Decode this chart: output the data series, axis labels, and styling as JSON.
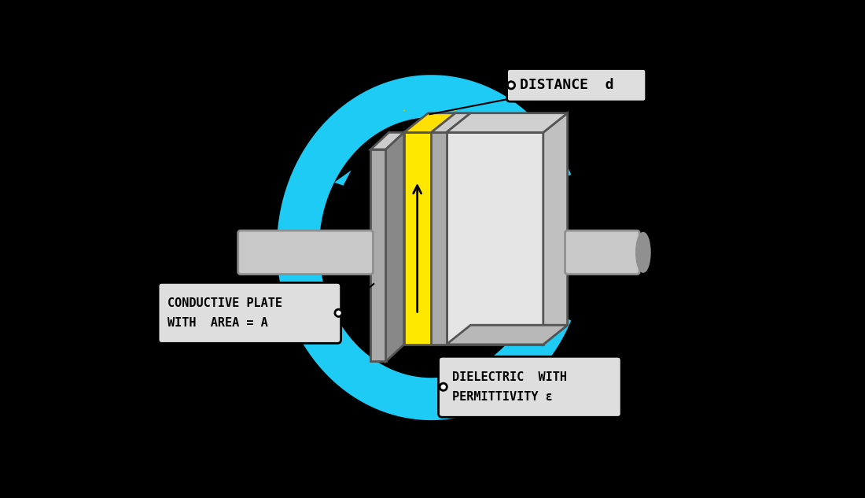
{
  "bg_color": "#000000",
  "cyan_color": "#1ECBF5",
  "yellow_color": "#FFE800",
  "gray_edge": "#555555",
  "gray_plate_face": "#AAAAAA",
  "gray_plate_light": "#CCCCCC",
  "gray_plate_dark": "#888888",
  "white_plate_face": "#E5E5E5",
  "white_plate_top": "#D0D0D0",
  "label_bg": "#DEDEDE",
  "label_border": "#000000",
  "dashed_color": "#CCCC00",
  "rod_fill": "#C8C8C8",
  "rod_dark": "#909090",
  "rod_light": "#E0E0E0",
  "title_distance": "DISTANCE  d",
  "title_conductive_1": "CONDUCTIVE PLATE",
  "title_conductive_2": "WITH  AREA = A",
  "title_dielectric_1": "DIELECTRIC  WITH",
  "title_dielectric_2": "PERMITTIVITY ε"
}
